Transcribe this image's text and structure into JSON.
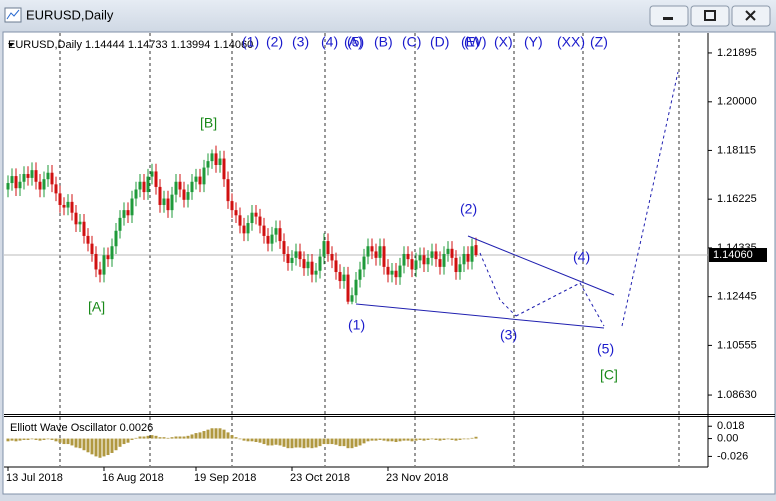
{
  "window": {
    "title": "EURUSD,Daily"
  },
  "chart_data": {
    "type": "candlestick",
    "header": "EURUSD,Daily  1.14444 1.14733 1.13994 1.14060",
    "count_labels": [
      "(1)",
      "(2)",
      "(3)",
      "(4)",
      "(5)",
      "(A)",
      "(B)",
      "(C)",
      "(D)",
      "(E)",
      "(W)",
      "(X)",
      "(Y)",
      "(XX)",
      "(Z)"
    ],
    "wave_labels": [
      "[A]",
      "[B]",
      "[C]",
      "(1)",
      "(2)",
      "(3)",
      "(4)",
      "(5)"
    ],
    "up_color": "#1f9a3a",
    "down_color": "#d01010",
    "open": [
      1.166,
      1.1685,
      1.1712,
      1.1665,
      1.169,
      1.172,
      1.1705,
      1.1735,
      1.169,
      1.166,
      1.17,
      1.1725,
      1.168,
      1.1645,
      1.16,
      1.159,
      1.1612,
      1.157,
      1.1525,
      1.1535,
      1.148,
      1.145,
      1.141,
      1.135,
      1.133,
      1.1405,
      1.139,
      1.144,
      1.15,
      1.155,
      1.158,
      1.156,
      1.1625,
      1.166,
      1.169,
      1.165,
      1.171,
      1.173,
      1.167,
      1.16,
      1.1625,
      1.158,
      1.164,
      1.169,
      1.166,
      1.162,
      1.165,
      1.169,
      1.171,
      1.168,
      1.1745,
      1.177,
      1.18,
      1.1755,
      1.178,
      1.17,
      1.1615,
      1.158,
      1.156,
      1.152,
      1.149,
      1.153,
      1.157,
      1.1555,
      1.152,
      1.148,
      1.145,
      1.1485,
      1.151,
      1.146,
      1.141,
      1.1375,
      1.1395,
      1.142,
      1.139,
      1.1355,
      1.138,
      1.133,
      1.1345,
      1.14,
      1.146,
      1.141,
      1.1385,
      1.134,
      1.1305,
      1.133,
      1.1225,
      1.125,
      1.131,
      1.135,
      1.14,
      1.144,
      1.142,
      1.1395,
      1.144,
      1.136,
      1.133,
      1.1345,
      1.132,
      1.1365,
      1.141,
      1.139,
      1.135,
      1.1385,
      1.1405,
      1.137,
      1.1395,
      1.142,
      1.139,
      1.136,
      1.141,
      1.143,
      1.1395,
      1.134,
      1.137,
      1.141,
      1.138,
      1.14444
    ],
    "high": [
      1.1715,
      1.1742,
      1.1742,
      1.172,
      1.175,
      1.175,
      1.1765,
      1.1765,
      1.172,
      1.173,
      1.1755,
      1.1755,
      1.171,
      1.1675,
      1.163,
      1.1642,
      1.1642,
      1.16,
      1.1565,
      1.1565,
      1.151,
      1.148,
      1.144,
      1.138,
      1.1435,
      1.1435,
      1.147,
      1.153,
      1.158,
      1.161,
      1.161,
      1.1655,
      1.169,
      1.172,
      1.172,
      1.174,
      1.176,
      1.176,
      1.17,
      1.1655,
      1.1655,
      1.167,
      1.172,
      1.172,
      1.169,
      1.168,
      1.172,
      1.174,
      1.174,
      1.1775,
      1.18,
      1.1815,
      1.183,
      1.181,
      1.181,
      1.173,
      1.1645,
      1.161,
      1.159,
      1.155,
      1.156,
      1.16,
      1.16,
      1.1585,
      1.155,
      1.151,
      1.1515,
      1.154,
      1.154,
      1.149,
      1.144,
      1.1425,
      1.145,
      1.145,
      1.142,
      1.141,
      1.141,
      1.1375,
      1.143,
      1.149,
      1.149,
      1.144,
      1.1415,
      1.137,
      1.136,
      1.136,
      1.128,
      1.134,
      1.138,
      1.143,
      1.147,
      1.147,
      1.145,
      1.147,
      1.147,
      1.139,
      1.1375,
      1.1375,
      1.1395,
      1.144,
      1.144,
      1.142,
      1.1415,
      1.1435,
      1.1435,
      1.1425,
      1.145,
      1.145,
      1.142,
      1.144,
      1.146,
      1.146,
      1.1425,
      1.14,
      1.144,
      1.144,
      1.147,
      1.14733
    ],
    "low": [
      1.163,
      1.1655,
      1.1635,
      1.1635,
      1.166,
      1.1675,
      1.1675,
      1.166,
      1.163,
      1.163,
      1.167,
      1.165,
      1.1615,
      1.157,
      1.156,
      1.156,
      1.154,
      1.1495,
      1.1495,
      1.145,
      1.142,
      1.138,
      1.132,
      1.13,
      1.13,
      1.136,
      1.136,
      1.141,
      1.147,
      1.152,
      1.153,
      1.153,
      1.1595,
      1.163,
      1.162,
      1.162,
      1.168,
      1.164,
      1.157,
      1.157,
      1.155,
      1.155,
      1.161,
      1.163,
      1.159,
      1.159,
      1.162,
      1.166,
      1.165,
      1.165,
      1.1715,
      1.174,
      1.1725,
      1.1725,
      1.167,
      1.1585,
      1.155,
      1.153,
      1.149,
      1.146,
      1.146,
      1.15,
      1.1525,
      1.149,
      1.145,
      1.142,
      1.142,
      1.1455,
      1.143,
      1.138,
      1.1345,
      1.1345,
      1.1365,
      1.136,
      1.1325,
      1.1325,
      1.13,
      1.13,
      1.1315,
      1.137,
      1.138,
      1.1355,
      1.131,
      1.1275,
      1.1275,
      1.1215,
      1.1215,
      1.122,
      1.128,
      1.132,
      1.137,
      1.139,
      1.1365,
      1.1365,
      1.133,
      1.13,
      1.13,
      1.129,
      1.129,
      1.1335,
      1.136,
      1.132,
      1.132,
      1.1355,
      1.134,
      1.134,
      1.1365,
      1.136,
      1.133,
      1.133,
      1.138,
      1.1365,
      1.131,
      1.131,
      1.134,
      1.135,
      1.135,
      1.13994
    ],
    "close": [
      1.1685,
      1.1712,
      1.1665,
      1.169,
      1.172,
      1.1705,
      1.1735,
      1.169,
      1.166,
      1.17,
      1.1725,
      1.168,
      1.1645,
      1.16,
      1.159,
      1.1612,
      1.157,
      1.1525,
      1.1535,
      1.148,
      1.145,
      1.141,
      1.135,
      1.133,
      1.1405,
      1.139,
      1.144,
      1.15,
      1.155,
      1.158,
      1.156,
      1.1625,
      1.166,
      1.169,
      1.165,
      1.171,
      1.173,
      1.167,
      1.16,
      1.1625,
      1.158,
      1.164,
      1.169,
      1.166,
      1.162,
      1.165,
      1.169,
      1.171,
      1.168,
      1.1745,
      1.177,
      1.18,
      1.1755,
      1.178,
      1.17,
      1.1615,
      1.158,
      1.156,
      1.152,
      1.149,
      1.153,
      1.157,
      1.1555,
      1.152,
      1.148,
      1.145,
      1.1485,
      1.151,
      1.146,
      1.141,
      1.1375,
      1.1395,
      1.142,
      1.139,
      1.1355,
      1.138,
      1.133,
      1.1345,
      1.14,
      1.146,
      1.141,
      1.1385,
      1.134,
      1.1305,
      1.133,
      1.1225,
      1.125,
      1.131,
      1.135,
      1.14,
      1.144,
      1.142,
      1.1395,
      1.144,
      1.136,
      1.133,
      1.1345,
      1.132,
      1.1365,
      1.141,
      1.139,
      1.135,
      1.1385,
      1.1405,
      1.137,
      1.1395,
      1.142,
      1.139,
      1.136,
      1.141,
      1.143,
      1.1395,
      1.134,
      1.137,
      1.141,
      1.138,
      1.144,
      1.1406
    ],
    "last_price_label": "1.14060",
    "xlim": [
      -1,
      175
    ],
    "xticks": [
      {
        "value": 0,
        "label": "13 Jul 2018"
      },
      {
        "value": 24,
        "label": "16 Aug 2018"
      },
      {
        "value": 47,
        "label": "19 Sep 2018"
      },
      {
        "value": 71,
        "label": "23 Oct 2018"
      },
      {
        "value": 95,
        "label": "23 Nov 2018"
      }
    ],
    "ylim": [
      1.07934,
      1.22668
    ],
    "yticks": [
      1.21895,
      {
        "value": 1.2,
        "label": "1.20000"
      },
      1.18115,
      1.16225,
      1.14335,
      1.12445,
      1.10555,
      {
        "value": 1.0863,
        "label": "1.08630"
      }
    ],
    "oscillator": {
      "title": "Elliott Wave Oscillator 0.0026",
      "color": "#b09840",
      "ylim": [
        -0.04,
        0.03
      ],
      "yticks": [
        0.018,
        {
          "value": 0,
          "label": "0.00"
        },
        -0.026
      ],
      "values": [
        -0.004,
        -0.003,
        -0.004,
        -0.003,
        -0.002,
        -0.002,
        -0.001,
        -0.002,
        -0.003,
        -0.002,
        -0.001,
        -0.002,
        -0.004,
        -0.006,
        -0.008,
        -0.008,
        -0.01,
        -0.013,
        -0.014,
        -0.017,
        -0.02,
        -0.023,
        -0.026,
        -0.028,
        -0.026,
        -0.024,
        -0.021,
        -0.017,
        -0.012,
        -0.008,
        -0.006,
        -0.002,
        0.001,
        0.003,
        0.003,
        0.004,
        0.005,
        0.004,
        0.002,
        0.002,
        0.001,
        0.002,
        0.003,
        0.003,
        0.003,
        0.004,
        0.006,
        0.008,
        0.009,
        0.011,
        0.013,
        0.015,
        0.015,
        0.015,
        0.013,
        0.009,
        0.005,
        0.002,
        -0.001,
        -0.003,
        -0.004,
        -0.004,
        -0.005,
        -0.006,
        -0.008,
        -0.01,
        -0.01,
        -0.009,
        -0.01,
        -0.012,
        -0.014,
        -0.014,
        -0.013,
        -0.013,
        -0.014,
        -0.013,
        -0.014,
        -0.013,
        -0.011,
        -0.008,
        -0.008,
        -0.008,
        -0.009,
        -0.011,
        -0.011,
        -0.014,
        -0.014,
        -0.012,
        -0.01,
        -0.007,
        -0.004,
        -0.003,
        -0.003,
        -0.002,
        -0.003,
        -0.004,
        -0.004,
        -0.005,
        -0.004,
        -0.003,
        -0.003,
        -0.004,
        -0.003,
        -0.002,
        -0.003,
        -0.002,
        -0.001,
        -0.002,
        -0.003,
        -0.002,
        -0.001,
        -0.002,
        -0.003,
        -0.002,
        -0.001,
        -0.001,
        0.001,
        0.0026
      ]
    }
  }
}
